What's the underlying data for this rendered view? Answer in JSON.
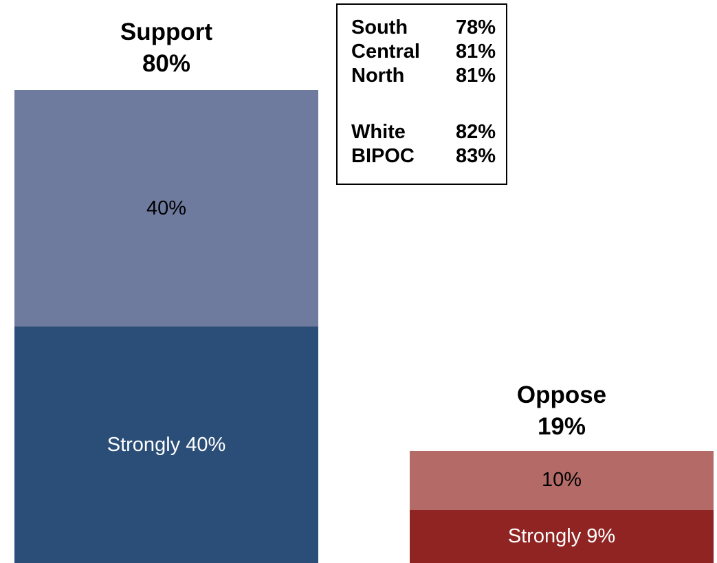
{
  "chart_data": {
    "type": "bar",
    "stacked": true,
    "categories": [
      "Support",
      "Oppose"
    ],
    "columns": [
      {
        "label": "Support",
        "total_label": "80%",
        "segments": [
          {
            "value": 40,
            "label": "Strongly 40%",
            "color": "#2b4e78",
            "text_color": "#ffffff"
          },
          {
            "value": 40,
            "label": "40%",
            "color": "#6e7b9e",
            "text_color": "#000000"
          }
        ]
      },
      {
        "label": "Oppose",
        "total_label": "19%",
        "segments": [
          {
            "value": 9,
            "label": "Strongly 9%",
            "color": "#8f2422",
            "text_color": "#ffffff"
          },
          {
            "value": 10,
            "label": "10%",
            "color": "#b46b67",
            "text_color": "#000000"
          }
        ]
      }
    ],
    "legend_table": [
      {
        "name": "South",
        "value": "78%"
      },
      {
        "name": "Central",
        "value": "81%"
      },
      {
        "name": "North",
        "value": "81%"
      },
      {
        "name": "White",
        "value": "82%"
      },
      {
        "name": "BIPOC",
        "value": "83%"
      }
    ],
    "ylim": [
      0,
      80
    ],
    "grid": false
  }
}
